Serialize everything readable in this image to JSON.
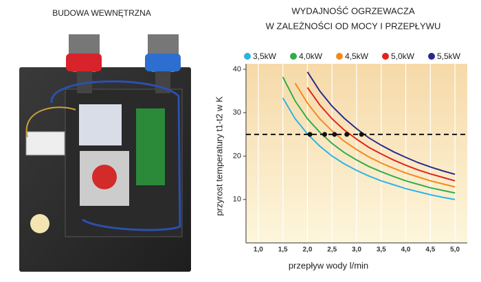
{
  "photo": {
    "caption": "BUDOWA WEWNĘTRZNA"
  },
  "chart_data": {
    "type": "line",
    "title": [
      "WYDAJNOŚĆ OGRZEWACZA",
      "W ZALEŻNOŚCI OD MOCY I PRZEPŁYWU"
    ],
    "x_label": "przepływ wody l/min",
    "y_label": "przyrost temperatury t1-t2 w K",
    "x": [
      1.0,
      1.25,
      1.5,
      1.75,
      2.0,
      2.25,
      2.5,
      2.75,
      3.0,
      3.25,
      3.5,
      3.75,
      4.0,
      4.25,
      4.5,
      4.75,
      5.0
    ],
    "series": [
      {
        "name": "3,5kW",
        "color": "#2bb3e6",
        "values": [
          null,
          null,
          33.4,
          28.6,
          25.1,
          22.3,
          20.0,
          18.2,
          16.7,
          15.4,
          14.3,
          13.4,
          12.5,
          11.8,
          11.1,
          10.5,
          10.0
        ]
      },
      {
        "name": "4,0kW",
        "color": "#2fae4a",
        "values": [
          null,
          null,
          38.2,
          32.7,
          28.6,
          25.5,
          22.9,
          20.8,
          19.1,
          17.6,
          16.4,
          15.3,
          14.3,
          13.5,
          12.7,
          12.1,
          11.5
        ]
      },
      {
        "name": "4,5kW",
        "color": "#f28a1e",
        "values": [
          null,
          null,
          null,
          36.8,
          32.2,
          28.6,
          25.8,
          23.4,
          21.5,
          19.8,
          18.4,
          17.2,
          16.1,
          15.2,
          14.3,
          13.6,
          12.9
        ]
      },
      {
        "name": "5,0kW",
        "color": "#e2231a",
        "values": [
          null,
          null,
          null,
          null,
          35.8,
          31.8,
          28.6,
          26.0,
          23.9,
          22.0,
          20.5,
          19.1,
          17.9,
          16.8,
          15.9,
          15.1,
          14.3
        ]
      },
      {
        "name": "5,5kW",
        "color": "#2a2a8c",
        "values": [
          null,
          null,
          null,
          null,
          39.4,
          35.0,
          31.5,
          28.7,
          26.3,
          24.2,
          22.5,
          21.0,
          19.7,
          18.5,
          17.5,
          16.6,
          15.8
        ]
      }
    ],
    "reference_y": 25,
    "reference_x": [
      2.05,
      2.35,
      2.55,
      2.8,
      3.1
    ],
    "xlim": [
      0.75,
      5.25
    ],
    "ylim": [
      0,
      40
    ],
    "xticks": [
      {
        "value": 1.0,
        "label": "1,0"
      },
      {
        "value": 1.5,
        "label": "1,5"
      },
      {
        "value": 2.0,
        "label": "2,0"
      },
      {
        "value": 2.5,
        "label": "2,5"
      },
      {
        "value": 3.0,
        "label": "3,0"
      },
      {
        "value": 3.5,
        "label": "3,5"
      },
      {
        "value": 4.0,
        "label": "4,0"
      },
      {
        "value": 4.5,
        "label": "4,5"
      },
      {
        "value": 5.0,
        "label": "5,0"
      }
    ],
    "yticks": [
      10,
      20,
      30,
      40
    ],
    "grid": true
  }
}
